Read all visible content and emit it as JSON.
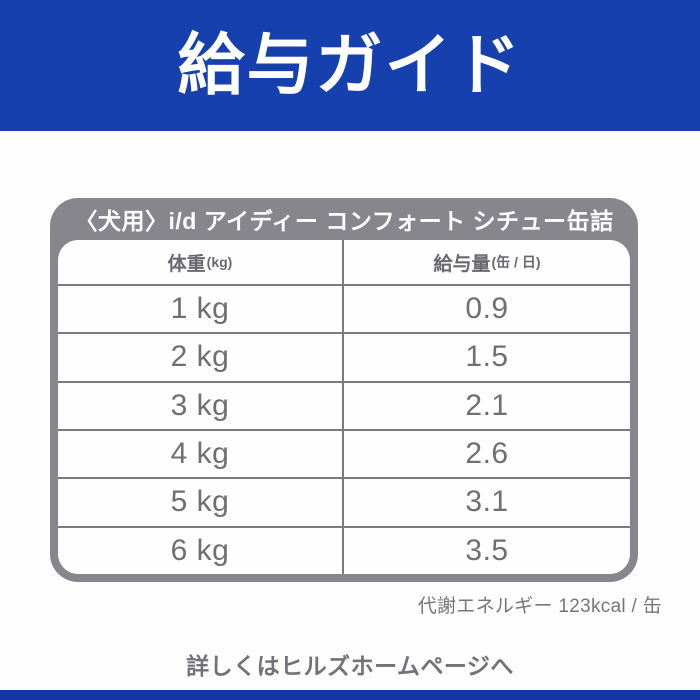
{
  "banner": {
    "title": "給与ガイド"
  },
  "table": {
    "title": "〈犬用〉i/d アイディー コンフォート シチュー缶詰",
    "columns": [
      {
        "label": "体重",
        "unit": "(kg)"
      },
      {
        "label": "給与量",
        "unit": "(缶 / 日)"
      }
    ],
    "rows": [
      {
        "weight": "1 kg",
        "amount": "0.9"
      },
      {
        "weight": "2 kg",
        "amount": "1.5"
      },
      {
        "weight": "3 kg",
        "amount": "2.1"
      },
      {
        "weight": "4 kg",
        "amount": "2.6"
      },
      {
        "weight": "5 kg",
        "amount": "3.1"
      },
      {
        "weight": "6 kg",
        "amount": "3.5"
      }
    ]
  },
  "energy_note": "代謝エネルギー 123kcal / 缶",
  "footer": {
    "text": "詳しくはヒルズホームページへ"
  },
  "colors": {
    "brand_blue": "#1640ad",
    "bottom_bar_blue": "#12399f",
    "table_gray": "#87868d",
    "grid_line_gray": "#7b7a81",
    "cell_text_gray": "#6f6e74",
    "note_text_gray": "#77767c",
    "background": "#fdfdfe"
  }
}
